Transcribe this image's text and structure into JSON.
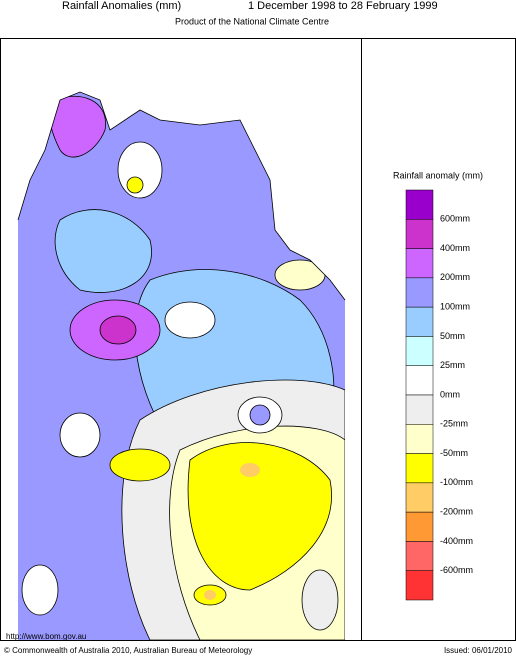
{
  "header": {
    "title": "Rainfall Anomalies (mm)",
    "period": "1 December 1998 to 28 February 1999",
    "subtitle": "Product of the National Climate Centre"
  },
  "legend": {
    "title": "Rainfall anomaly (mm)",
    "colors": [
      "#9900cc",
      "#cc33cc",
      "#cc66ff",
      "#9999ff",
      "#99ccff",
      "#ccffff",
      "#ffffff",
      "#eeeeee",
      "#ffffcc",
      "#ffff00",
      "#ffcc66",
      "#ff9933",
      "#ff6666",
      "#ff3333"
    ],
    "labels": [
      "600mm",
      "400mm",
      "200mm",
      "100mm",
      "50mm",
      "25mm",
      "0mm",
      "-25mm",
      "-50mm",
      "-100mm",
      "-200mm",
      "-400mm",
      "-600mm"
    ]
  },
  "footer": {
    "url": "http://www.bom.gov.au",
    "copyright": "© Commonwealth of Australia 2010, Australian Bureau of Meteorology",
    "issued": "Issued: 06/01/2010"
  }
}
